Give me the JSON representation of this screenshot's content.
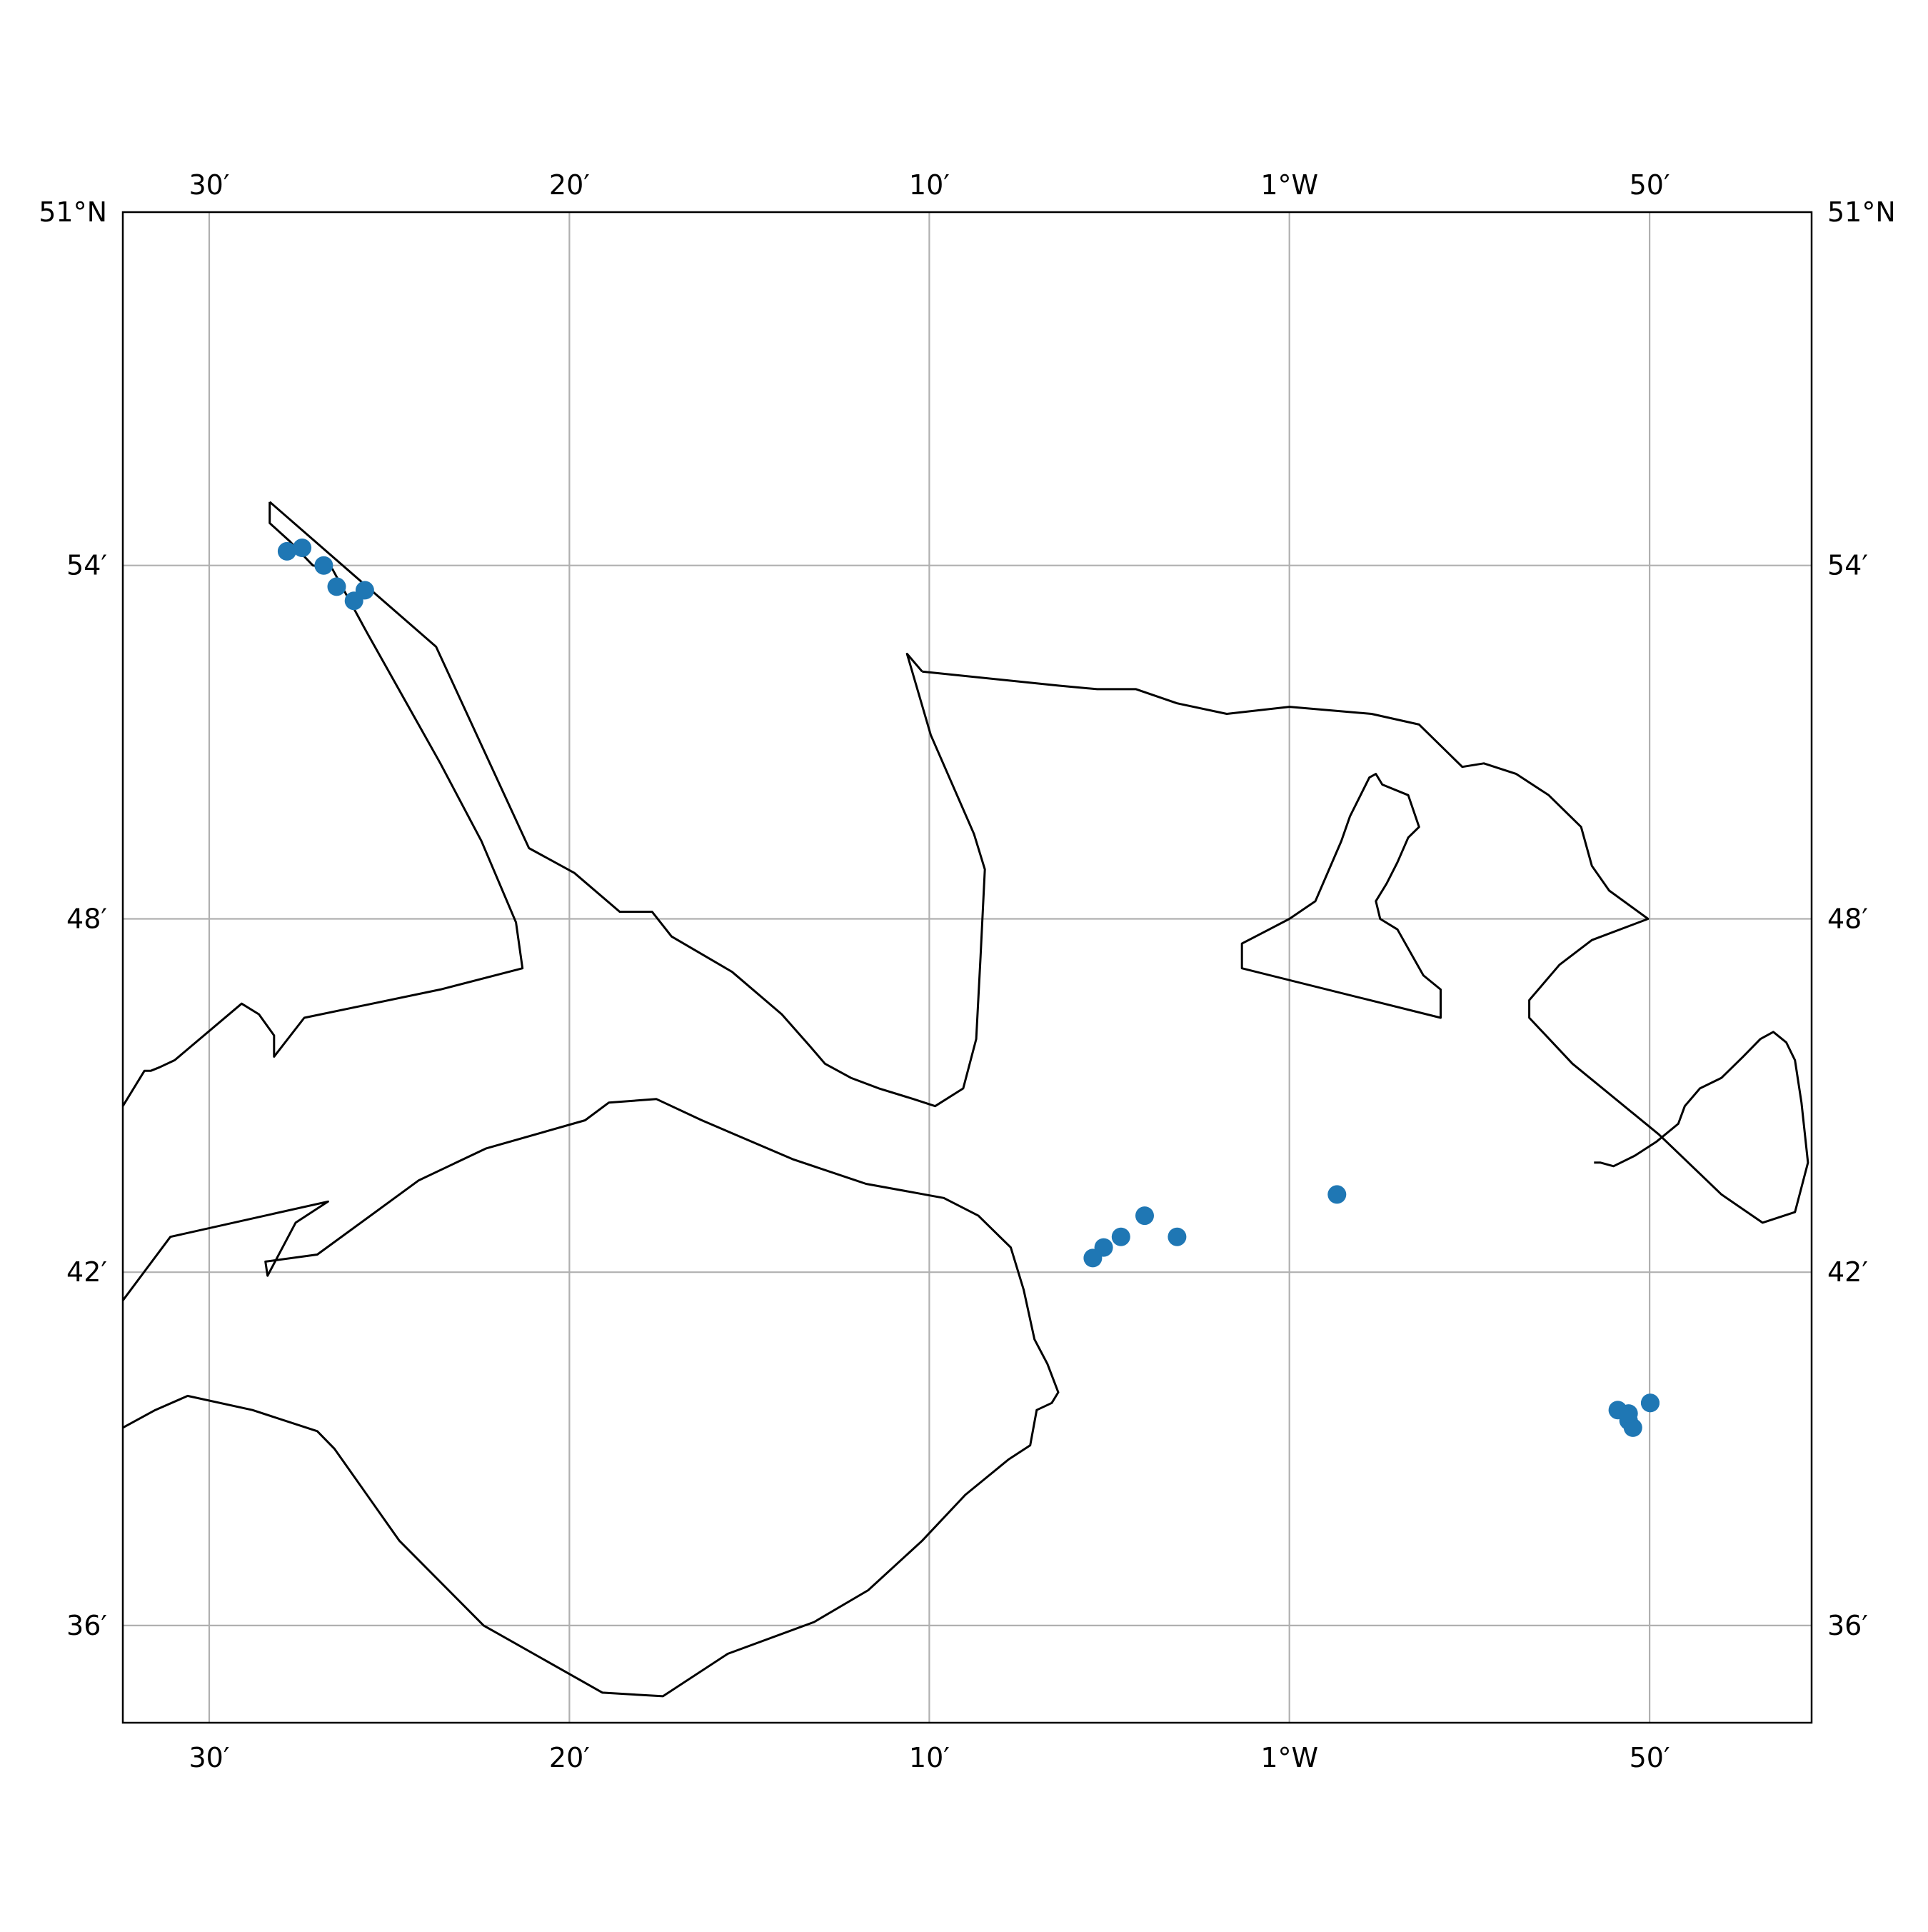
{
  "map": {
    "frame": {
      "lon_min": -1.54,
      "lon_max": -0.7583,
      "lat_min": 50.5725,
      "lat_max": 51.0
    },
    "colors": {
      "grid": "#b0b0b0",
      "coast": "#000000",
      "marker": "#1f77b4"
    },
    "gridlines_lon": [
      -1.5,
      -1.3333,
      -1.1667,
      -1.0,
      -0.8333
    ],
    "gridlines_lat": [
      51.0,
      50.9,
      50.8,
      50.7,
      50.6
    ],
    "lon_labels": [
      {
        "lon": -1.5,
        "text": "30′"
      },
      {
        "lon": -1.3333,
        "text": "20′"
      },
      {
        "lon": -1.1667,
        "text": "10′"
      },
      {
        "lon": -1.0,
        "text": "1°W"
      },
      {
        "lon": -0.8333,
        "text": "50′"
      }
    ],
    "lat_labels": [
      {
        "lat": 51.0,
        "text": "51°N"
      },
      {
        "lat": 50.9,
        "text": "54′"
      },
      {
        "lat": 50.8,
        "text": "48′"
      },
      {
        "lat": 50.7,
        "text": "42′"
      },
      {
        "lat": 50.6,
        "text": "36′"
      }
    ],
    "coastlines": [
      [
        [
          -1.472,
          50.918
        ],
        [
          -1.472,
          50.912
        ],
        [
          -1.463,
          50.907
        ],
        [
          -1.452,
          50.9
        ],
        [
          -1.443,
          50.899
        ],
        [
          -1.427,
          50.881
        ],
        [
          -1.393,
          50.844
        ],
        [
          -1.374,
          50.822
        ],
        [
          -1.358,
          50.799
        ],
        [
          -1.355,
          50.786
        ],
        [
          -1.393,
          50.78
        ],
        [
          -1.456,
          50.772
        ],
        [
          -1.47,
          50.761
        ],
        [
          -1.47,
          50.767
        ],
        [
          -1.477,
          50.773
        ],
        [
          -1.485,
          50.776
        ],
        [
          -1.516,
          50.76
        ],
        [
          -1.523,
          50.758
        ],
        [
          -1.527,
          50.757
        ],
        [
          -1.53,
          50.757
        ],
        [
          -1.54,
          50.747
        ]
      ],
      [
        [
          -1.472,
          50.918
        ],
        [
          -1.395,
          50.877
        ],
        [
          -1.352,
          50.82
        ],
        [
          -1.331,
          50.813
        ],
        [
          -1.31,
          50.802
        ],
        [
          -1.295,
          50.802
        ],
        [
          -1.286,
          50.795
        ],
        [
          -1.258,
          50.785
        ],
        [
          -1.235,
          50.773
        ],
        [
          -1.222,
          50.764
        ],
        [
          -1.215,
          50.759
        ],
        [
          -1.203,
          50.755
        ],
        [
          -1.19,
          50.752
        ],
        [
          -1.174,
          50.749
        ],
        [
          -1.164,
          50.747
        ],
        [
          -1.151,
          50.752
        ],
        [
          -1.145,
          50.766
        ],
        [
          -1.143,
          50.789
        ],
        [
          -1.141,
          50.814
        ],
        [
          -1.146,
          50.824
        ],
        [
          -1.166,
          50.852
        ],
        [
          -1.177,
          50.875
        ],
        [
          -1.17,
          50.87
        ]
      ],
      [
        [
          -1.17,
          50.87
        ],
        [
          -1.107,
          50.866
        ],
        [
          -1.089,
          50.865
        ],
        [
          -1.071,
          50.865
        ],
        [
          -1.052,
          50.861
        ],
        [
          -1.029,
          50.858
        ],
        [
          -1.0,
          50.86
        ],
        [
          -0.962,
          50.858
        ],
        [
          -0.94,
          50.855
        ],
        [
          -0.92,
          50.843
        ],
        [
          -0.91,
          50.844
        ],
        [
          -0.895,
          50.841
        ],
        [
          -0.88,
          50.835
        ],
        [
          -0.865,
          50.826
        ],
        [
          -0.86,
          50.815
        ],
        [
          -0.852,
          50.808
        ],
        [
          -0.834,
          50.8
        ],
        [
          -0.86,
          50.794
        ],
        [
          -0.875,
          50.787
        ],
        [
          -0.889,
          50.777
        ],
        [
          -0.889,
          50.772
        ],
        [
          -0.869,
          50.759
        ],
        [
          -0.829,
          50.739
        ],
        [
          -0.8,
          50.722
        ],
        [
          -0.781,
          50.714
        ],
        [
          -0.766,
          50.717
        ],
        [
          -0.76,
          50.731
        ],
        [
          -0.763,
          50.748
        ],
        [
          -0.766,
          50.76
        ],
        [
          -0.77,
          50.765
        ],
        [
          -0.776,
          50.768
        ],
        [
          -0.782,
          50.766
        ],
        [
          -0.79,
          50.761
        ],
        [
          -0.8,
          50.755
        ],
        [
          -0.81,
          50.752
        ],
        [
          -0.817,
          50.747
        ],
        [
          -0.82,
          50.742
        ],
        [
          -0.83,
          50.737
        ],
        [
          -0.84,
          50.733
        ],
        [
          -0.85,
          50.73
        ],
        [
          -0.856,
          50.731
        ],
        [
          -0.859,
          50.731
        ]
      ],
      [
        [
          -1.0,
          50.8
        ],
        [
          -1.022,
          50.793
        ],
        [
          -1.022,
          50.786
        ],
        [
          -0.93,
          50.772
        ],
        [
          -0.93,
          50.78
        ],
        [
          -0.938,
          50.784
        ],
        [
          -0.95,
          50.797
        ],
        [
          -0.958,
          50.8
        ],
        [
          -0.96,
          50.805
        ],
        [
          -0.955,
          50.81
        ],
        [
          -0.95,
          50.816
        ],
        [
          -0.945,
          50.823
        ],
        [
          -0.94,
          50.826
        ],
        [
          -0.945,
          50.835
        ],
        [
          -0.957,
          50.838
        ],
        [
          -0.96,
          50.841
        ],
        [
          -0.963,
          50.84
        ],
        [
          -0.972,
          50.829
        ],
        [
          -0.976,
          50.822
        ],
        [
          -0.988,
          50.805
        ],
        [
          -1.0,
          50.8
        ]
      ],
      [
        [
          -1.54,
          50.692
        ],
        [
          -1.518,
          50.71
        ],
        [
          -1.445,
          50.72
        ],
        [
          -1.46,
          50.714
        ],
        [
          -1.473,
          50.699
        ],
        [
          -1.474,
          50.703
        ],
        [
          -1.45,
          50.705
        ],
        [
          -1.403,
          50.726
        ],
        [
          -1.372,
          50.735
        ],
        [
          -1.326,
          50.743
        ],
        [
          -1.315,
          50.748
        ],
        [
          -1.293,
          50.749
        ],
        [
          -1.272,
          50.743
        ],
        [
          -1.23,
          50.732
        ],
        [
          -1.196,
          50.725
        ],
        [
          -1.16,
          50.721
        ],
        [
          -1.144,
          50.716
        ],
        [
          -1.129,
          50.707
        ],
        [
          -1.123,
          50.695
        ],
        [
          -1.118,
          50.681
        ],
        [
          -1.112,
          50.674
        ],
        [
          -1.107,
          50.666
        ],
        [
          -1.11,
          50.663
        ],
        [
          -1.117,
          50.661
        ],
        [
          -1.12,
          50.651
        ],
        [
          -1.13,
          50.647
        ],
        [
          -1.15,
          50.637
        ],
        [
          -1.17,
          50.624
        ],
        [
          -1.195,
          50.61
        ],
        [
          -1.22,
          50.601
        ],
        [
          -1.26,
          50.592
        ],
        [
          -1.29,
          50.58
        ],
        [
          -1.318,
          50.581
        ],
        [
          -1.373,
          50.6
        ],
        [
          -1.412,
          50.624
        ],
        [
          -1.442,
          50.65
        ],
        [
          -1.45,
          50.655
        ],
        [
          -1.48,
          50.661
        ],
        [
          -1.51,
          50.665
        ],
        [
          -1.525,
          50.661
        ],
        [
          -1.54,
          50.656
        ]
      ]
    ],
    "points": [
      [
        -1.464,
        50.904
      ],
      [
        -1.457,
        50.905
      ],
      [
        -1.447,
        50.9
      ],
      [
        -1.441,
        50.894
      ],
      [
        -1.433,
        50.89
      ],
      [
        -1.428,
        50.893
      ],
      [
        -1.052,
        50.71
      ],
      [
        -1.067,
        50.716
      ],
      [
        -1.078,
        50.71
      ],
      [
        -1.086,
        50.707
      ],
      [
        -1.091,
        50.704
      ],
      [
        -0.978,
        50.722
      ],
      [
        -0.848,
        50.661
      ],
      [
        -0.843,
        50.658
      ],
      [
        -0.841,
        50.656
      ],
      [
        -0.843,
        50.66
      ],
      [
        -0.833,
        50.663
      ],
      [
        -0.833,
        50.663
      ]
    ]
  }
}
